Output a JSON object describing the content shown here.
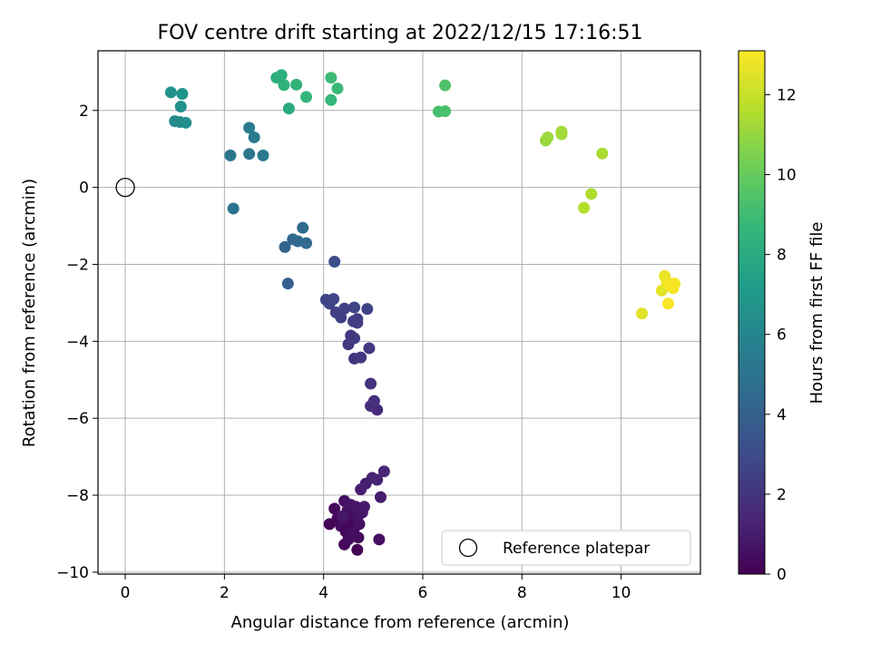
{
  "chart_data": {
    "type": "scatter",
    "title": "FOV centre drift starting at 2022/12/15 17:16:51",
    "xlabel": "Angular distance from reference (arcmin)",
    "ylabel": "Rotation from reference (arcmin)",
    "xlim": [
      -0.55,
      11.6
    ],
    "ylim": [
      -10.05,
      3.55
    ],
    "xticks": [
      0,
      2,
      4,
      6,
      8,
      10
    ],
    "yticks": [
      -10,
      -8,
      -6,
      -4,
      -2,
      0,
      2
    ],
    "xtick_labels": [
      "0",
      "2",
      "4",
      "6",
      "8",
      "10"
    ],
    "ytick_labels": [
      "−10",
      "−8",
      "−6",
      "−4",
      "−2",
      "0",
      "2"
    ],
    "grid": true,
    "legend": {
      "position": "bottom-right",
      "label": "Reference platepar"
    },
    "reference_point": {
      "x": 0,
      "y": 0
    },
    "colorbar": {
      "label": "Hours from first FF file",
      "colormap": "viridis",
      "range": [
        0,
        13.1
      ],
      "ticks": [
        0,
        2,
        4,
        6,
        8,
        10,
        12
      ],
      "tick_labels": [
        "0",
        "2",
        "4",
        "6",
        "8",
        "10",
        "12"
      ]
    },
    "series": [
      {
        "points": [
          {
            "x": 4.12,
            "y": -8.75,
            "c": 0.1
          },
          {
            "x": 4.22,
            "y": -8.35,
            "c": 0.3
          },
          {
            "x": 4.28,
            "y": -8.6,
            "c": 0.2
          },
          {
            "x": 4.35,
            "y": -8.8,
            "c": 0.4
          },
          {
            "x": 4.42,
            "y": -8.15,
            "c": 0.5
          },
          {
            "x": 4.45,
            "y": -8.95,
            "c": 0.15
          },
          {
            "x": 4.48,
            "y": -8.4,
            "c": 0.6
          },
          {
            "x": 4.52,
            "y": -8.7,
            "c": 0.25
          },
          {
            "x": 4.55,
            "y": -9.0,
            "c": 0.35
          },
          {
            "x": 4.58,
            "y": -8.5,
            "c": 0.45
          },
          {
            "x": 4.62,
            "y": -8.85,
            "c": 0.05
          },
          {
            "x": 4.65,
            "y": -8.3,
            "c": 0.7
          },
          {
            "x": 4.68,
            "y": -8.6,
            "c": 0.55
          },
          {
            "x": 4.7,
            "y": -9.1,
            "c": 0.3
          },
          {
            "x": 4.72,
            "y": -8.75,
            "c": 0.65
          },
          {
            "x": 4.42,
            "y": -9.28,
            "c": 0.2
          },
          {
            "x": 4.68,
            "y": -9.42,
            "c": 0.1
          },
          {
            "x": 4.5,
            "y": -9.15,
            "c": 0.4
          },
          {
            "x": 4.78,
            "y": -8.45,
            "c": 0.8
          },
          {
            "x": 4.82,
            "y": -8.3,
            "c": 0.9
          },
          {
            "x": 4.55,
            "y": -8.25,
            "c": 0.75
          },
          {
            "x": 4.38,
            "y": -8.55,
            "c": 0.85
          },
          {
            "x": 4.6,
            "y": -8.95,
            "c": 0.5
          },
          {
            "x": 5.12,
            "y": -9.15,
            "c": 0.6
          },
          {
            "x": 4.75,
            "y": -7.85,
            "c": 1.0
          },
          {
            "x": 4.85,
            "y": -7.7,
            "c": 1.1
          },
          {
            "x": 4.98,
            "y": -7.55,
            "c": 1.2
          },
          {
            "x": 5.08,
            "y": -7.6,
            "c": 1.3
          },
          {
            "x": 5.22,
            "y": -7.38,
            "c": 1.4
          },
          {
            "x": 5.15,
            "y": -8.05,
            "c": 1.05
          },
          {
            "x": 5.08,
            "y": -5.78,
            "c": 1.6
          },
          {
            "x": 4.95,
            "y": -5.68,
            "c": 1.7
          },
          {
            "x": 5.02,
            "y": -5.55,
            "c": 1.8
          },
          {
            "x": 4.95,
            "y": -5.1,
            "c": 1.9
          },
          {
            "x": 4.62,
            "y": -4.45,
            "c": 2.0
          },
          {
            "x": 4.75,
            "y": -4.42,
            "c": 2.05
          },
          {
            "x": 4.92,
            "y": -4.18,
            "c": 2.1
          },
          {
            "x": 4.5,
            "y": -4.08,
            "c": 2.15
          },
          {
            "x": 4.55,
            "y": -3.85,
            "c": 2.2
          },
          {
            "x": 4.62,
            "y": -3.92,
            "c": 2.25
          },
          {
            "x": 4.6,
            "y": -3.48,
            "c": 2.3
          },
          {
            "x": 4.68,
            "y": -3.52,
            "c": 2.35
          },
          {
            "x": 4.68,
            "y": -3.42,
            "c": 2.4
          },
          {
            "x": 4.35,
            "y": -3.38,
            "c": 2.45
          },
          {
            "x": 4.25,
            "y": -3.25,
            "c": 2.5
          },
          {
            "x": 4.42,
            "y": -3.15,
            "c": 2.55
          },
          {
            "x": 4.62,
            "y": -3.12,
            "c": 2.6
          },
          {
            "x": 4.88,
            "y": -3.16,
            "c": 2.65
          },
          {
            "x": 4.05,
            "y": -2.92,
            "c": 2.7
          },
          {
            "x": 4.12,
            "y": -3.02,
            "c": 2.75
          },
          {
            "x": 4.2,
            "y": -2.9,
            "c": 2.8
          },
          {
            "x": 4.22,
            "y": -1.93,
            "c": 3.1
          },
          {
            "x": 3.28,
            "y": -2.5,
            "c": 4.0
          },
          {
            "x": 3.22,
            "y": -1.55,
            "c": 4.2
          },
          {
            "x": 3.38,
            "y": -1.35,
            "c": 4.3
          },
          {
            "x": 3.48,
            "y": -1.4,
            "c": 4.4
          },
          {
            "x": 3.65,
            "y": -1.45,
            "c": 4.5
          },
          {
            "x": 3.58,
            "y": -1.05,
            "c": 4.6
          },
          {
            "x": 2.18,
            "y": -0.55,
            "c": 4.9
          },
          {
            "x": 2.12,
            "y": 0.83,
            "c": 5.1
          },
          {
            "x": 2.5,
            "y": 0.87,
            "c": 5.2
          },
          {
            "x": 2.78,
            "y": 0.83,
            "c": 5.3
          },
          {
            "x": 2.6,
            "y": 1.3,
            "c": 5.4
          },
          {
            "x": 2.5,
            "y": 1.55,
            "c": 5.5
          },
          {
            "x": 1.0,
            "y": 1.72,
            "c": 6.3
          },
          {
            "x": 1.1,
            "y": 1.7,
            "c": 6.4
          },
          {
            "x": 1.22,
            "y": 1.68,
            "c": 6.5
          },
          {
            "x": 1.12,
            "y": 2.1,
            "c": 6.6
          },
          {
            "x": 0.92,
            "y": 2.47,
            "c": 6.7
          },
          {
            "x": 1.15,
            "y": 2.43,
            "c": 6.8
          },
          {
            "x": 3.3,
            "y": 2.05,
            "c": 8.0
          },
          {
            "x": 3.05,
            "y": 2.85,
            "c": 8.2
          },
          {
            "x": 3.15,
            "y": 2.92,
            "c": 8.3
          },
          {
            "x": 3.2,
            "y": 2.66,
            "c": 8.4
          },
          {
            "x": 3.45,
            "y": 2.67,
            "c": 8.5
          },
          {
            "x": 3.65,
            "y": 2.35,
            "c": 8.6
          },
          {
            "x": 4.15,
            "y": 2.27,
            "c": 8.7
          },
          {
            "x": 4.28,
            "y": 2.57,
            "c": 8.8
          },
          {
            "x": 4.15,
            "y": 2.85,
            "c": 8.9
          },
          {
            "x": 6.32,
            "y": 1.97,
            "c": 9.2
          },
          {
            "x": 6.45,
            "y": 1.98,
            "c": 9.3
          },
          {
            "x": 6.45,
            "y": 2.65,
            "c": 9.4
          },
          {
            "x": 8.48,
            "y": 1.22,
            "c": 11.0
          },
          {
            "x": 8.52,
            "y": 1.3,
            "c": 11.1
          },
          {
            "x": 8.8,
            "y": 1.38,
            "c": 11.2
          },
          {
            "x": 8.8,
            "y": 1.45,
            "c": 11.3
          },
          {
            "x": 9.62,
            "y": 0.88,
            "c": 11.4
          },
          {
            "x": 9.4,
            "y": -0.17,
            "c": 11.5
          },
          {
            "x": 9.25,
            "y": -0.53,
            "c": 11.6
          },
          {
            "x": 10.42,
            "y": -3.28,
            "c": 12.5
          },
          {
            "x": 10.82,
            "y": -2.68,
            "c": 12.6
          },
          {
            "x": 10.88,
            "y": -2.3,
            "c": 12.7
          },
          {
            "x": 10.92,
            "y": -2.45,
            "c": 12.8
          },
          {
            "x": 11.05,
            "y": -2.62,
            "c": 12.85
          },
          {
            "x": 11.08,
            "y": -2.5,
            "c": 12.9
          },
          {
            "x": 10.95,
            "y": -3.02,
            "c": 12.95
          },
          {
            "x": 10.98,
            "y": -2.55,
            "c": 13.0
          }
        ]
      }
    ]
  }
}
